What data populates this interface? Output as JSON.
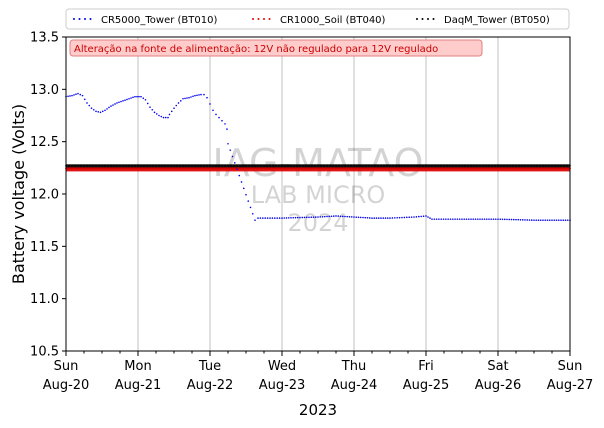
{
  "chart_data": {
    "type": "scatter",
    "xlabel": "2023",
    "ylabel": "Battery voltage (Volts)",
    "ylim": [
      10.5,
      13.5
    ],
    "xlim": [
      "2023-08-20",
      "2023-08-27"
    ],
    "yticks": [
      "10.5",
      "11.0",
      "11.5",
      "12.0",
      "12.5",
      "13.0",
      "13.5"
    ],
    "xticks": [
      {
        "date": "2023-08-20",
        "day": "Sun",
        "label": "Aug-20"
      },
      {
        "date": "2023-08-21",
        "day": "Mon",
        "label": "Aug-21"
      },
      {
        "date": "2023-08-22",
        "day": "Tue",
        "label": "Aug-22"
      },
      {
        "date": "2023-08-23",
        "day": "Wed",
        "label": "Aug-23"
      },
      {
        "date": "2023-08-24",
        "day": "Thu",
        "label": "Aug-24"
      },
      {
        "date": "2023-08-25",
        "day": "Fri",
        "label": "Aug-25"
      },
      {
        "date": "2023-08-26",
        "day": "Sat",
        "label": "Aug-26"
      },
      {
        "date": "2023-08-27",
        "day": "Sun",
        "label": "Aug-27"
      }
    ],
    "grid": "vertical",
    "legend_position": "top",
    "annotation": "Alteração na fonte de alimentação: 12V não regulado para 12V regulado",
    "watermark": [
      "IAG-MATAO",
      "LAB MICRO",
      "2024"
    ],
    "series": [
      {
        "name": "CR5000_Tower (BT010)",
        "color": "#0000ee",
        "points": [
          [
            "2023-08-20 00:00",
            12.93
          ],
          [
            "2023-08-20 02:00",
            12.94
          ],
          [
            "2023-08-20 04:00",
            12.96
          ],
          [
            "2023-08-20 05:30",
            12.94
          ],
          [
            "2023-08-20 07:00",
            12.87
          ],
          [
            "2023-08-20 08:30",
            12.82
          ],
          [
            "2023-08-20 10:00",
            12.79
          ],
          [
            "2023-08-20 11:30",
            12.78
          ],
          [
            "2023-08-20 13:00",
            12.8
          ],
          [
            "2023-08-20 15:00",
            12.84
          ],
          [
            "2023-08-20 17:00",
            12.87
          ],
          [
            "2023-08-20 19:00",
            12.89
          ],
          [
            "2023-08-20 21:00",
            12.91
          ],
          [
            "2023-08-20 23:00",
            12.93
          ],
          [
            "2023-08-21 01:00",
            12.93
          ],
          [
            "2023-08-21 02:30",
            12.9
          ],
          [
            "2023-08-21 04:00",
            12.83
          ],
          [
            "2023-08-21 05:30",
            12.78
          ],
          [
            "2023-08-21 07:00",
            12.75
          ],
          [
            "2023-08-21 08:30",
            12.73
          ],
          [
            "2023-08-21 10:00",
            12.73
          ],
          [
            "2023-08-21 10:30",
            12.76
          ],
          [
            "2023-08-21 12:00",
            12.82
          ],
          [
            "2023-08-21 13:30",
            12.87
          ],
          [
            "2023-08-21 15:00",
            12.91
          ],
          [
            "2023-08-21 17:00",
            12.92
          ],
          [
            "2023-08-21 19:00",
            12.94
          ],
          [
            "2023-08-21 21:00",
            12.95
          ],
          [
            "2023-08-21 22:00",
            12.95
          ],
          [
            "2023-08-21 23:00",
            12.92
          ],
          [
            "2023-08-22 00:00",
            12.86
          ],
          [
            "2023-08-22 01:00",
            12.8
          ],
          [
            "2023-08-22 02:00",
            12.76
          ],
          [
            "2023-08-22 03:00",
            12.73
          ],
          [
            "2023-08-22 04:00",
            12.7
          ],
          [
            "2023-08-22 05:00",
            12.67
          ],
          [
            "2023-08-22 05:40",
            12.62
          ],
          [
            "2023-08-22 06:00",
            12.48
          ],
          [
            "2023-08-22 15:00",
            11.75
          ],
          [
            "2023-08-22 16:00",
            11.77
          ],
          [
            "2023-08-23 00:00",
            11.77
          ],
          [
            "2023-08-23 12:00",
            11.78
          ],
          [
            "2023-08-23 18:00",
            11.79
          ],
          [
            "2023-08-24 00:00",
            11.78
          ],
          [
            "2023-08-24 06:00",
            11.77
          ],
          [
            "2023-08-24 12:00",
            11.77
          ],
          [
            "2023-08-24 20:00",
            11.78
          ],
          [
            "2023-08-25 00:00",
            11.79
          ],
          [
            "2023-08-25 02:00",
            11.76
          ],
          [
            "2023-08-25 12:00",
            11.76
          ],
          [
            "2023-08-26 00:00",
            11.76
          ],
          [
            "2023-08-26 12:00",
            11.75
          ],
          [
            "2023-08-27 00:00",
            11.75
          ]
        ]
      },
      {
        "name": "CR1000_Soil (BT040)",
        "color": "#dd0000",
        "points": [
          [
            "2023-08-20 00:00",
            12.235
          ],
          [
            "2023-08-27 00:00",
            12.235
          ]
        ]
      },
      {
        "name": "DaqM_Tower (BT050)",
        "color": "#000000",
        "points": [
          [
            "2023-08-20 00:00",
            12.26
          ],
          [
            "2023-08-27 00:00",
            12.26
          ]
        ]
      }
    ]
  }
}
